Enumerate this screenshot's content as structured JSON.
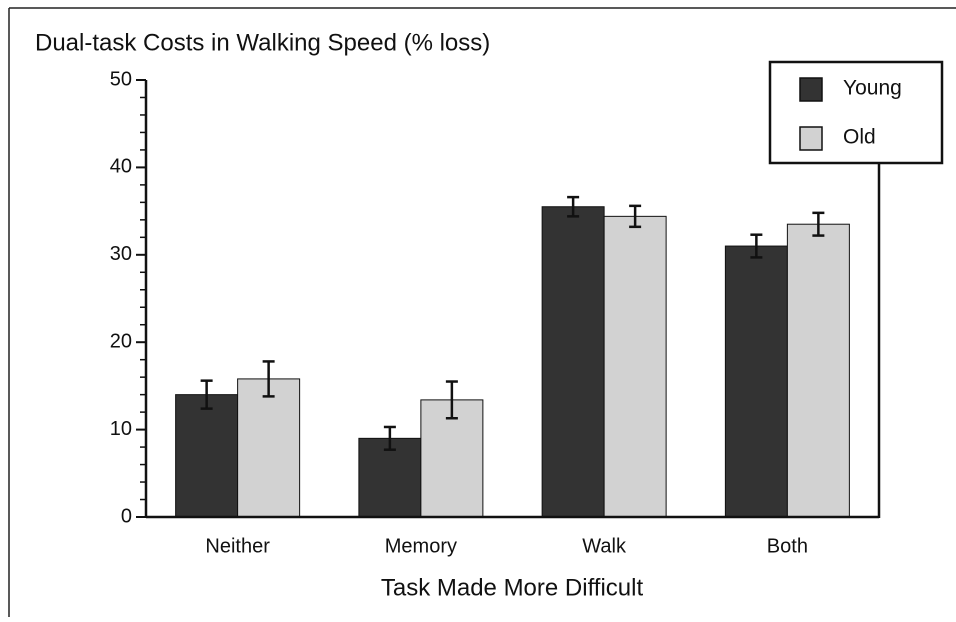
{
  "chart_data": {
    "type": "bar",
    "title": "Dual-task Costs in Walking Speed (% loss)",
    "x_label": "Task Made More Difficult",
    "categories": [
      "Neither",
      "Memory",
      "Walk",
      "Both"
    ],
    "series": [
      {
        "name": "Young",
        "color": "#333333",
        "values": [
          14,
          9,
          35.5,
          31
        ],
        "errors": [
          1.6,
          1.3,
          1.1,
          1.3
        ]
      },
      {
        "name": "Old",
        "color": "#d2d2d2",
        "values": [
          15.8,
          13.4,
          34.4,
          33.5
        ],
        "errors": [
          2,
          2.1,
          1.2,
          1.3
        ]
      }
    ],
    "ylim": [
      0,
      50
    ],
    "yticks": [
      0,
      10,
      20,
      30,
      40,
      50
    ],
    "legend": "top-right"
  }
}
